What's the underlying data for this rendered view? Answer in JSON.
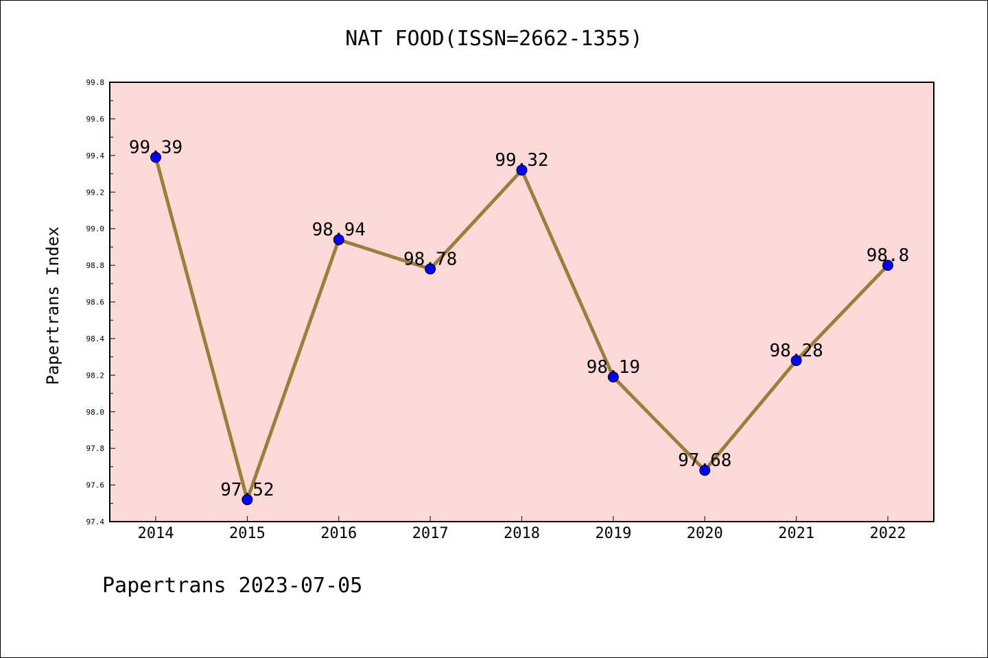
{
  "chart_data": {
    "type": "line",
    "title": "NAT FOOD(ISSN=2662-1355)",
    "xlabel": "",
    "ylabel": "Papertrans Index",
    "categories": [
      "2014",
      "2015",
      "2016",
      "2017",
      "2018",
      "2019",
      "2020",
      "2021",
      "2022"
    ],
    "series": [
      {
        "values": [
          99.39,
          97.52,
          98.94,
          98.78,
          99.32,
          98.19,
          97.68,
          98.28,
          98.8
        ],
        "labels": [
          "99.39",
          "97.52",
          "98.94",
          "98.78",
          "99.32",
          "98.19",
          "97.68",
          "98.28",
          "98.8"
        ]
      }
    ],
    "ylim": [
      97.4,
      99.8
    ],
    "yticks": [
      "97.4",
      "97.6",
      "97.8",
      "98.0",
      "98.2",
      "98.4",
      "98.6",
      "98.8",
      "99.0",
      "99.2",
      "99.4",
      "99.6",
      "99.8"
    ],
    "grid": false,
    "colors": {
      "plot_background": "#fddad7",
      "line": "#9b7e3b",
      "marker": "#0000ff"
    }
  },
  "footer": "Papertrans 2023-07-05"
}
